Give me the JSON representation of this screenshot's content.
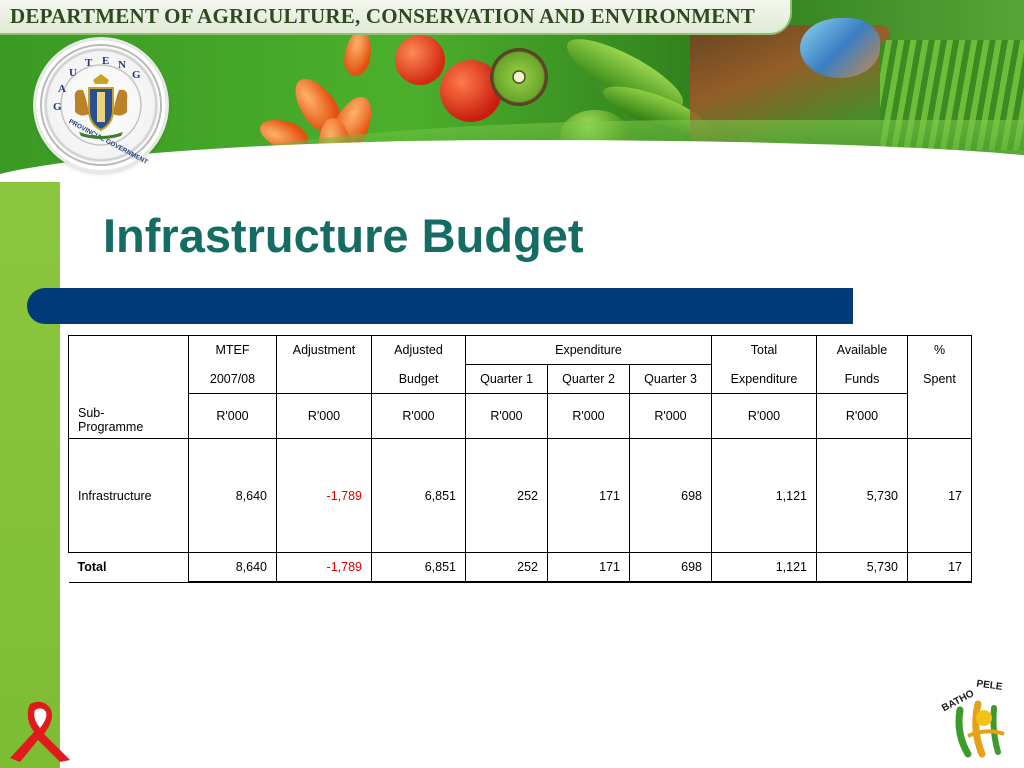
{
  "banner": {
    "title": "DEPARTMENT OF AGRICULTURE, CONSERVATION AND ENVIRONMENT",
    "seal_text": "GAUTENG PROVINCIAL GOVERNMENT"
  },
  "page": {
    "title": "Infrastructure Budget"
  },
  "table": {
    "headers": {
      "mtef_top": "MTEF",
      "mtef_bottom": "2007/08",
      "adjustment": "Adjustment",
      "adjusted_top": "Adjusted",
      "adjusted_bottom": "Budget",
      "expenditure": "Expenditure",
      "q1": "Quarter 1",
      "q2": "Quarter 2",
      "q3": "Quarter 3",
      "total_top": "Total",
      "total_bottom": "Expenditure",
      "available_top": "Available",
      "available_bottom": "Funds",
      "percent_top": "%",
      "percent_bottom": "Spent",
      "sub_programme": "Sub-\nProgramme",
      "unit": "R'000"
    },
    "rows": [
      {
        "name": "Infrastructure",
        "mtef": "8,640",
        "adjustment": "-1,789",
        "adjusted": "6,851",
        "q1": "252",
        "q2": "171",
        "q3": "698",
        "total": "1,121",
        "available": "5,730",
        "percent": "17"
      }
    ],
    "total": {
      "name": "Total",
      "mtef": "8,640",
      "adjustment": "-1,789",
      "adjusted": "6,851",
      "q1": "252",
      "q2": "171",
      "q3": "698",
      "total": "1,121",
      "available": "5,730",
      "percent": "17"
    }
  },
  "footer": {
    "logo_text": "BATHO PELE"
  },
  "colors": {
    "title": "#156c62",
    "bar": "#003a78",
    "left_bar": "#8cc63f",
    "negative": "#e00000"
  }
}
